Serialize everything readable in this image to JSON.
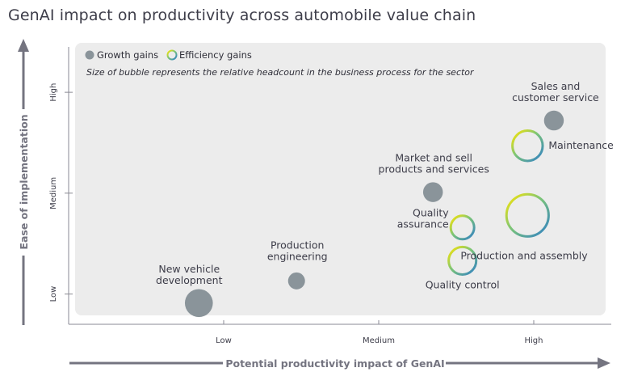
{
  "title": "GenAI impact on productivity across automobile value chain",
  "chart_data": {
    "type": "scatter",
    "title": "GenAI impact on productivity across automobile value chain",
    "xlabel": "Potential productivity impact of GenAI",
    "ylabel": "Ease of implementation",
    "x_ticks": [
      "Low",
      "Medium",
      "High"
    ],
    "y_ticks": [
      "Low",
      "Medium",
      "High"
    ],
    "xlim": [
      0.0,
      3.5
    ],
    "ylim": [
      0.7,
      3.45
    ],
    "legend": {
      "position": "top-left",
      "entries": [
        {
          "name": "Growth gains",
          "color": "#8a949a"
        },
        {
          "name": "Efficiency gains",
          "color": "gradient"
        }
      ]
    },
    "note": "Size of bubble represents the relative headcount in the business process for the sector",
    "points": [
      {
        "label": [
          "New vehicle",
          "development"
        ],
        "category": "Growth gains",
        "x": 0.84,
        "y": 0.91,
        "size": 3.0
      },
      {
        "label": [
          "Production",
          "engineering"
        ],
        "category": "Growth gains",
        "x": 1.47,
        "y": 1.13,
        "size": 1.1
      },
      {
        "label": [
          "Market and sell",
          "products and services"
        ],
        "category": "Growth gains",
        "x": 2.35,
        "y": 2.01,
        "size": 1.5
      },
      {
        "label": [
          "Sales and",
          "customer service"
        ],
        "category": "Growth gains",
        "x": 3.13,
        "y": 2.72,
        "size": 1.5
      },
      {
        "label": [
          "Maintenance"
        ],
        "category": "Efficiency gains",
        "x": 2.96,
        "y": 2.47,
        "size": 3.5
      },
      {
        "label": [
          "Production and assembly"
        ],
        "category": "Efficiency gains",
        "x": 2.96,
        "y": 1.78,
        "size": 6.8
      },
      {
        "label": [
          "Quality",
          "assurance"
        ],
        "category": "Efficiency gains",
        "x": 2.54,
        "y": 1.66,
        "size": 2.1
      },
      {
        "label": [
          "Quality control"
        ],
        "category": "Efficiency gains",
        "x": 2.54,
        "y": 1.33,
        "size": 2.9
      }
    ]
  }
}
